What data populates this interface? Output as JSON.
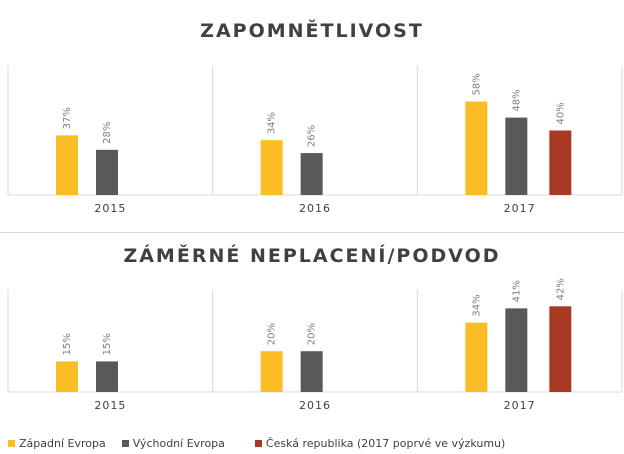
{
  "chart_data": [
    {
      "type": "bar",
      "title": "ZAPOMNĚTLIVOST",
      "categories": [
        "2015",
        "2016",
        "2017"
      ],
      "series": [
        {
          "name": "Západní Evropa",
          "values": [
            37,
            34,
            58
          ],
          "labels": [
            "37%",
            "34%",
            "58%"
          ]
        },
        {
          "name": "Východní Evropa",
          "values": [
            28,
            26,
            48
          ],
          "labels": [
            "28%",
            "26%",
            "48%"
          ]
        },
        {
          "name": "Česká republika (2017 poprvé ve výzkumu)",
          "values": [
            null,
            null,
            40
          ],
          "labels": [
            null,
            null,
            "40%"
          ]
        }
      ],
      "ylim": [
        0,
        80
      ],
      "grid": false
    },
    {
      "type": "bar",
      "title": "ZÁMĚRNÉ NEPLACENÍ/PODVOD",
      "categories": [
        "2015",
        "2016",
        "2017"
      ],
      "series": [
        {
          "name": "Západní Evropa",
          "values": [
            15,
            20,
            34
          ],
          "labels": [
            "15%",
            "20%",
            "34%"
          ]
        },
        {
          "name": "Východní Evropa",
          "values": [
            15,
            20,
            41
          ],
          "labels": [
            "15%",
            "20%",
            "41%"
          ]
        },
        {
          "name": "Česká republika (2017 poprvé ve výzkumu)",
          "values": [
            null,
            null,
            42
          ],
          "labels": [
            null,
            null,
            "42%"
          ]
        }
      ],
      "ylim": [
        0,
        50
      ],
      "grid": false
    }
  ],
  "legend": {
    "placement": "bottom",
    "items": [
      {
        "label": "Západní Evropa",
        "color": "#fbbd25"
      },
      {
        "label": "Východní Evropa",
        "color": "#595959"
      },
      {
        "label": "Česká republika (2017 poprvé ve výzkumu)",
        "color": "#a83a23"
      }
    ]
  },
  "colors": {
    "series": [
      "#fbbd25",
      "#595959",
      "#a83a23"
    ],
    "label_text": "#7f7f7f",
    "axis_text": "#404040",
    "frame": "#d9d9d9"
  }
}
